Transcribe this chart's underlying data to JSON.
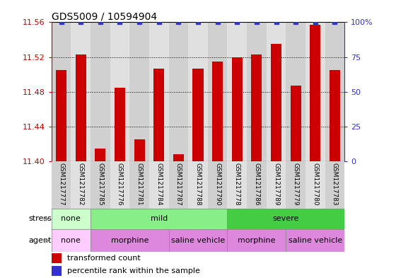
{
  "title": "GDS5009 / 10594904",
  "samples": [
    "GSM1217777",
    "GSM1217782",
    "GSM1217785",
    "GSM1217776",
    "GSM1217781",
    "GSM1217784",
    "GSM1217787",
    "GSM1217788",
    "GSM1217790",
    "GSM1217778",
    "GSM1217786",
    "GSM1217789",
    "GSM1217779",
    "GSM1217780",
    "GSM1217783"
  ],
  "transformed_counts": [
    11.505,
    11.523,
    11.415,
    11.485,
    11.425,
    11.507,
    11.408,
    11.507,
    11.515,
    11.52,
    11.523,
    11.535,
    11.487,
    11.557,
    11.505
  ],
  "percentile_ranks": [
    100,
    100,
    100,
    100,
    100,
    100,
    100,
    100,
    100,
    100,
    100,
    100,
    100,
    100,
    100
  ],
  "ylim_left": [
    11.4,
    11.56
  ],
  "ylim_right": [
    0,
    100
  ],
  "yticks_left": [
    11.4,
    11.44,
    11.48,
    11.52,
    11.56
  ],
  "yticks_right": [
    0,
    25,
    50,
    75,
    100
  ],
  "bar_color": "#cc0000",
  "dot_color": "#3333cc",
  "left_tick_color": "#cc0000",
  "right_tick_color": "#3333cc",
  "stress_groups": [
    {
      "label": "none",
      "start": 0,
      "end": 2,
      "color": "#ccffcc"
    },
    {
      "label": "mild",
      "start": 2,
      "end": 9,
      "color": "#88ee88"
    },
    {
      "label": "severe",
      "start": 9,
      "end": 15,
      "color": "#44cc44"
    }
  ],
  "agent_groups": [
    {
      "label": "none",
      "start": 0,
      "end": 2,
      "color": "#ffccff"
    },
    {
      "label": "morphine",
      "start": 2,
      "end": 6,
      "color": "#dd88dd"
    },
    {
      "label": "saline vehicle",
      "start": 6,
      "end": 9,
      "color": "#dd88dd"
    },
    {
      "label": "morphine",
      "start": 9,
      "end": 12,
      "color": "#dd88dd"
    },
    {
      "label": "saline vehicle",
      "start": 12,
      "end": 15,
      "color": "#dd88dd"
    }
  ],
  "col_colors": [
    "#d0d0d0",
    "#e0e0e0"
  ],
  "bar_width": 0.55
}
